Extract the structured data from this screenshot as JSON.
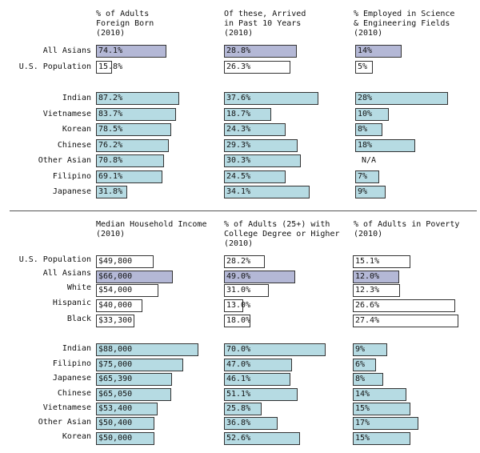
{
  "colors": {
    "asian": "#b4b8d6",
    "group": "#b6dbe3",
    "population": "#ffffff",
    "border": "#333333"
  },
  "chart_data": [
    {
      "type": "bar",
      "title": "% of Adults Foreign Born (2010)",
      "categories": [
        "All Asians",
        "U.S. Population",
        "Indian",
        "Vietnamese",
        "Korean",
        "Chinese",
        "Other Asian",
        "Filipino",
        "Japanese"
      ],
      "values": [
        74.1,
        15.8,
        87.2,
        83.7,
        78.5,
        76.2,
        70.8,
        69.1,
        31.8
      ],
      "labels": [
        "74.1%",
        "15.8%",
        "87.2%",
        "83.7%",
        "78.5%",
        "76.2%",
        "70.8%",
        "69.1%",
        "31.8%"
      ]
    },
    {
      "type": "bar",
      "title": "Of these, Arrived in Past 10 Years (2010)",
      "categories": [
        "All Asians",
        "U.S. Population",
        "Indian",
        "Vietnamese",
        "Korean",
        "Chinese",
        "Other Asian",
        "Filipino",
        "Japanese"
      ],
      "values": [
        28.8,
        26.3,
        37.6,
        18.7,
        24.3,
        29.3,
        30.3,
        24.5,
        34.1
      ],
      "labels": [
        "28.8%",
        "26.3%",
        "37.6%",
        "18.7%",
        "24.3%",
        "29.3%",
        "30.3%",
        "24.5%",
        "34.1%"
      ]
    },
    {
      "type": "bar",
      "title": "% Employed in Science & Engineering Fields (2010)",
      "categories": [
        "All Asians",
        "U.S. Population",
        "Indian",
        "Vietnamese",
        "Korean",
        "Chinese",
        "Other Asian",
        "Filipino",
        "Japanese"
      ],
      "values": [
        14,
        5,
        28,
        10,
        8,
        18,
        null,
        7,
        9
      ],
      "labels": [
        "14%",
        "5%",
        "28%",
        "10%",
        "8%",
        "18%",
        "N/A",
        "7%",
        "9%"
      ]
    },
    {
      "type": "bar",
      "title": "Median Household Income (2010)",
      "categories": [
        "U.S. Population",
        "All Asians",
        "White",
        "Hispanic",
        "Black",
        "Indian",
        "Filipino",
        "Japanese",
        "Chinese",
        "Vietnamese",
        "Other Asian",
        "Korean"
      ],
      "values": [
        49800,
        66000,
        54000,
        40000,
        33300,
        88000,
        75000,
        65390,
        65050,
        53400,
        50400,
        50000
      ],
      "labels": [
        "$49,800",
        "$66,000",
        "$54,000",
        "$40,000",
        "$33,300",
        "$88,000",
        "$75,000",
        "$65,390",
        "$65,050",
        "$53,400",
        "$50,400",
        "$50,000"
      ]
    },
    {
      "type": "bar",
      "title": "% of Adults (25+) with College Degree or Higher (2010)",
      "categories": [
        "U.S. Population",
        "All Asians",
        "White",
        "Hispanic",
        "Black",
        "Indian",
        "Filipino",
        "Japanese",
        "Chinese",
        "Vietnamese",
        "Other Asian",
        "Korean"
      ],
      "values": [
        28.2,
        49.0,
        31.0,
        13.0,
        18.0,
        70.0,
        47.0,
        46.1,
        51.1,
        25.8,
        36.8,
        52.6
      ],
      "labels": [
        "28.2%",
        "49.0%",
        "31.0%",
        "13.0%",
        "18.0%",
        "70.0%",
        "47.0%",
        "46.1%",
        "51.1%",
        "25.8%",
        "36.8%",
        "52.6%"
      ]
    },
    {
      "type": "bar",
      "title": "% of Adults in Poverty (2010)",
      "categories": [
        "U.S. Population",
        "All Asians",
        "White",
        "Hispanic",
        "Black",
        "Indian",
        "Filipino",
        "Japanese",
        "Chinese",
        "Vietnamese",
        "Other Asian",
        "Korean"
      ],
      "values": [
        15.1,
        12.0,
        12.3,
        26.6,
        27.4,
        9,
        6,
        8,
        14,
        15,
        17,
        15
      ],
      "labels": [
        "15.1%",
        "12.0%",
        "12.3%",
        "26.6%",
        "27.4%",
        "9%",
        "6%",
        "8%",
        "14%",
        "15%",
        "17%",
        "15%"
      ]
    }
  ],
  "headers": {
    "foreign_born": "% of Adults\nForeign Born\n(2010)",
    "arrived": "Of these, Arrived\nin Past 10 Years\n(2010)",
    "sci_eng": "% Employed in Science\n& Engineering Fields\n(2010)",
    "income": "Median Household Income\n(2010)",
    "college": "% of Adults (25+) with\nCollege Degree or Higher\n(2010)",
    "poverty": "% of Adults in Poverty\n(2010)"
  }
}
